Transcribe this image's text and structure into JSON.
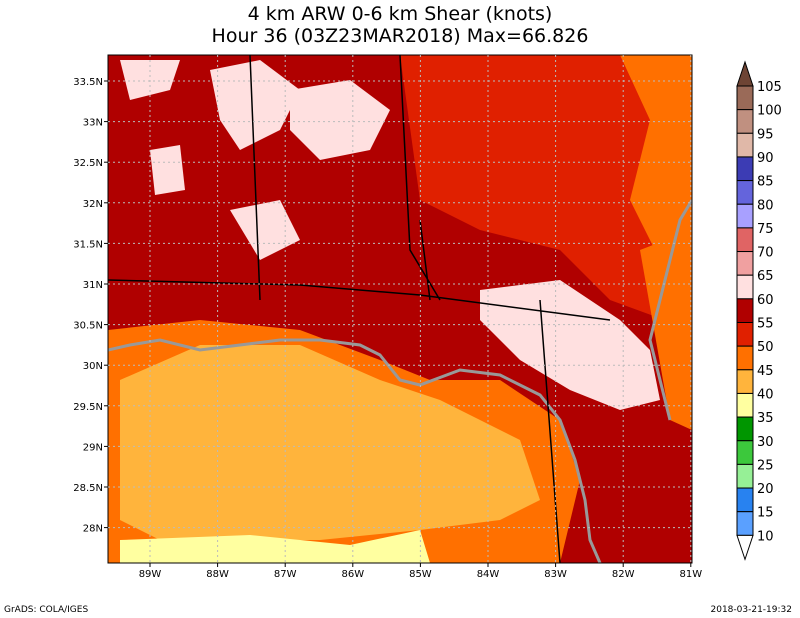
{
  "title": [
    "4 km ARW 0-6 km Shear (knots)",
    "Hour 36 (03Z23MAR2018) Max=66.826"
  ],
  "lat_labels": [
    "33.5N",
    "33N",
    "32.5N",
    "32N",
    "31.5N",
    "31N",
    "30.5N",
    "30N",
    "29.5N",
    "29N",
    "28.5N",
    "28N"
  ],
  "lon_labels": [
    "89W",
    "88W",
    "87W",
    "86W",
    "85W",
    "84W",
    "83W",
    "82W",
    "81W"
  ],
  "colorbar": {
    "labels": [
      "105",
      "100",
      "95",
      "90",
      "85",
      "80",
      "75",
      "70",
      "65",
      "60",
      "55",
      "50",
      "45",
      "40",
      "35",
      "30",
      "25",
      "20",
      "15",
      "10"
    ],
    "colors": [
      "#6e4434",
      "#9a6a58",
      "#c09080",
      "#e0b8a8",
      "#3c3cb4",
      "#6464dc",
      "#a8a0ff",
      "#e06464",
      "#f0a0a0",
      "#ffe0e0",
      "#b00000",
      "#e02000",
      "#ff7000",
      "#ffb43c",
      "#ffffa0",
      "#009600",
      "#3cc83c",
      "#96f096",
      "#2882f0",
      "#5aa0ff",
      "#ffffff"
    ]
  },
  "footer": {
    "left": "GrADS: COLA/IGES",
    "right": "2018-03-21-19:32"
  }
}
